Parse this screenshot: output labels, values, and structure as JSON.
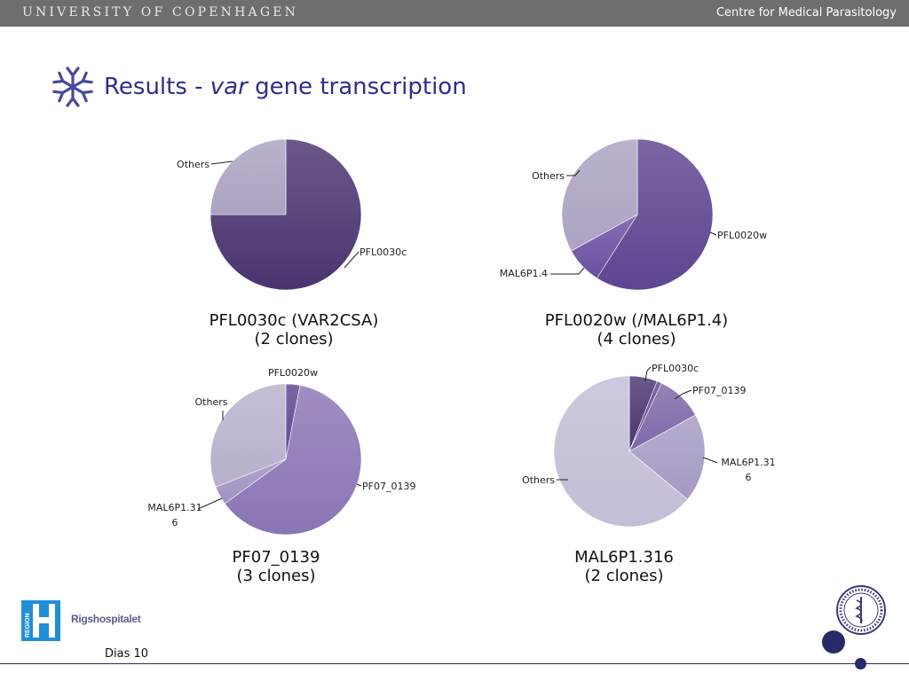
{
  "header": {
    "university": "UNIVERSITY OF COPENHAGEN",
    "department": "Centre for Medical Parasitology"
  },
  "title": {
    "prefix": "Results - ",
    "italic": "var",
    "suffix": " gene transcription"
  },
  "chart_data": [
    {
      "type": "pie",
      "caption_line1": "PFL0030c (VAR2CSA)",
      "caption_line2": "(2  clones)",
      "slices": [
        {
          "label": "PFL0030c",
          "value": 75,
          "color": "#4a3470"
        },
        {
          "label": "Others",
          "value": 25,
          "color": "#aca2c2"
        }
      ]
    },
    {
      "type": "pie",
      "caption_line1": "PFL0020w (/MAL6P1.4)",
      "caption_line2": "(4 clones)",
      "slices": [
        {
          "label": "PFL0020w",
          "value": 59,
          "color": "#5d4590"
        },
        {
          "label": "MAL6P1.4",
          "value": 8,
          "color": "#6a50a0"
        },
        {
          "label": "Others",
          "value": 33,
          "color": "#aca2c2"
        }
      ]
    },
    {
      "type": "pie",
      "caption_line1": "PF07_0139",
      "caption_line2": "(3 clones)",
      "slices": [
        {
          "label": "PFL0020w",
          "value": 3,
          "color": "#5d4590"
        },
        {
          "label": "PF07_0139",
          "value": 62,
          "color": "#8a75b5"
        },
        {
          "label": "MAL6P1.316",
          "value": 4,
          "color": "#9f92c2"
        },
        {
          "label": "Others",
          "value": 31,
          "color": "#b8b0cc"
        }
      ]
    },
    {
      "type": "pie",
      "caption_line1": "MAL6P1.316",
      "caption_line2": "(2 clones)",
      "slices": [
        {
          "label": "PFL0030c",
          "value": 6,
          "color": "#4a3470"
        },
        {
          "label": "",
          "value": 1,
          "color": "#5d4590"
        },
        {
          "label": "PF07_0139",
          "value": 10,
          "color": "#7d69a8"
        },
        {
          "label": "MAL6P1.316",
          "value": 19,
          "color": "#a69ac4"
        },
        {
          "label": "Others",
          "value": 64,
          "color": "#c4bdd6"
        }
      ]
    }
  ],
  "footer": {
    "slide_number": "Dias 10",
    "hospital_name": "Rigshospitalet",
    "region_text": "REGION"
  },
  "icons": {
    "logo": "antibody-logo-icon",
    "region": "region-h-logo-icon",
    "seal": "university-seal-icon"
  },
  "colors": {
    "title": "#2e2e8a",
    "header_bar": "#6e6e6e",
    "accent": "#2a2a6a"
  }
}
